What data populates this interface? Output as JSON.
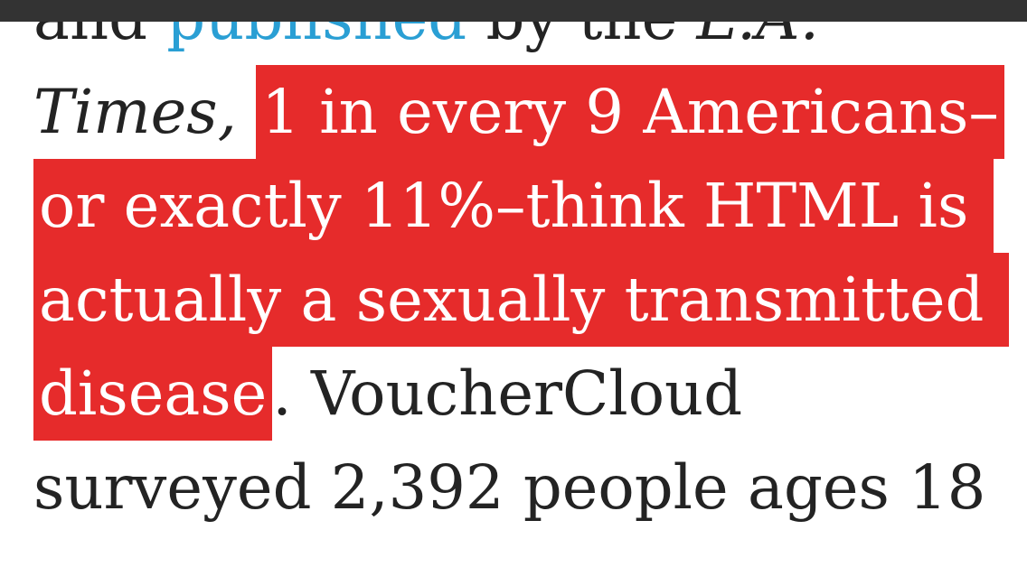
{
  "colors": {
    "background": "#ffffff",
    "topbar": "#333333",
    "text": "#232323",
    "link": "#2a9fd4",
    "highlight": "#e62b2b",
    "highlight_text": "#ffffff"
  },
  "topbar": {
    "label": ""
  },
  "article": {
    "full_text": "and published by the L.A. Times, 1 in every 9 Americans–or exactly 11%–think HTML is actually a sexually transmitted disease. VoucherCloud surveyed 2,392 people ages 18",
    "highlighted_quote": "1 in every 9 Americans–or exactly 11%–think HTML is actually a sexually transmitted disease",
    "link_text": "published",
    "lines": [
      {
        "segments": [
          {
            "text": "and ",
            "style": "plain"
          },
          {
            "text": "published",
            "style": "link"
          },
          {
            "text": " by the ",
            "style": "plain"
          },
          {
            "text": "L.A.",
            "style": "italic"
          }
        ]
      },
      {
        "segments": [
          {
            "text": "Times,",
            "style": "italic"
          },
          {
            "text": " ",
            "style": "plain"
          },
          {
            "text": "1 in every 9 Americans–",
            "style": "highlight"
          }
        ]
      },
      {
        "segments": [
          {
            "text": "or exactly 11%–think HTML is ",
            "style": "highlight"
          }
        ]
      },
      {
        "segments": [
          {
            "text": "actually a sexually transmitted ",
            "style": "highlight"
          }
        ]
      },
      {
        "segments": [
          {
            "text": "disease",
            "style": "highlight"
          },
          {
            "text": ". VoucherCloud",
            "style": "plain"
          }
        ]
      },
      {
        "segments": [
          {
            "text": "surveyed 2,392 people ages 18",
            "style": "plain"
          }
        ]
      }
    ]
  }
}
